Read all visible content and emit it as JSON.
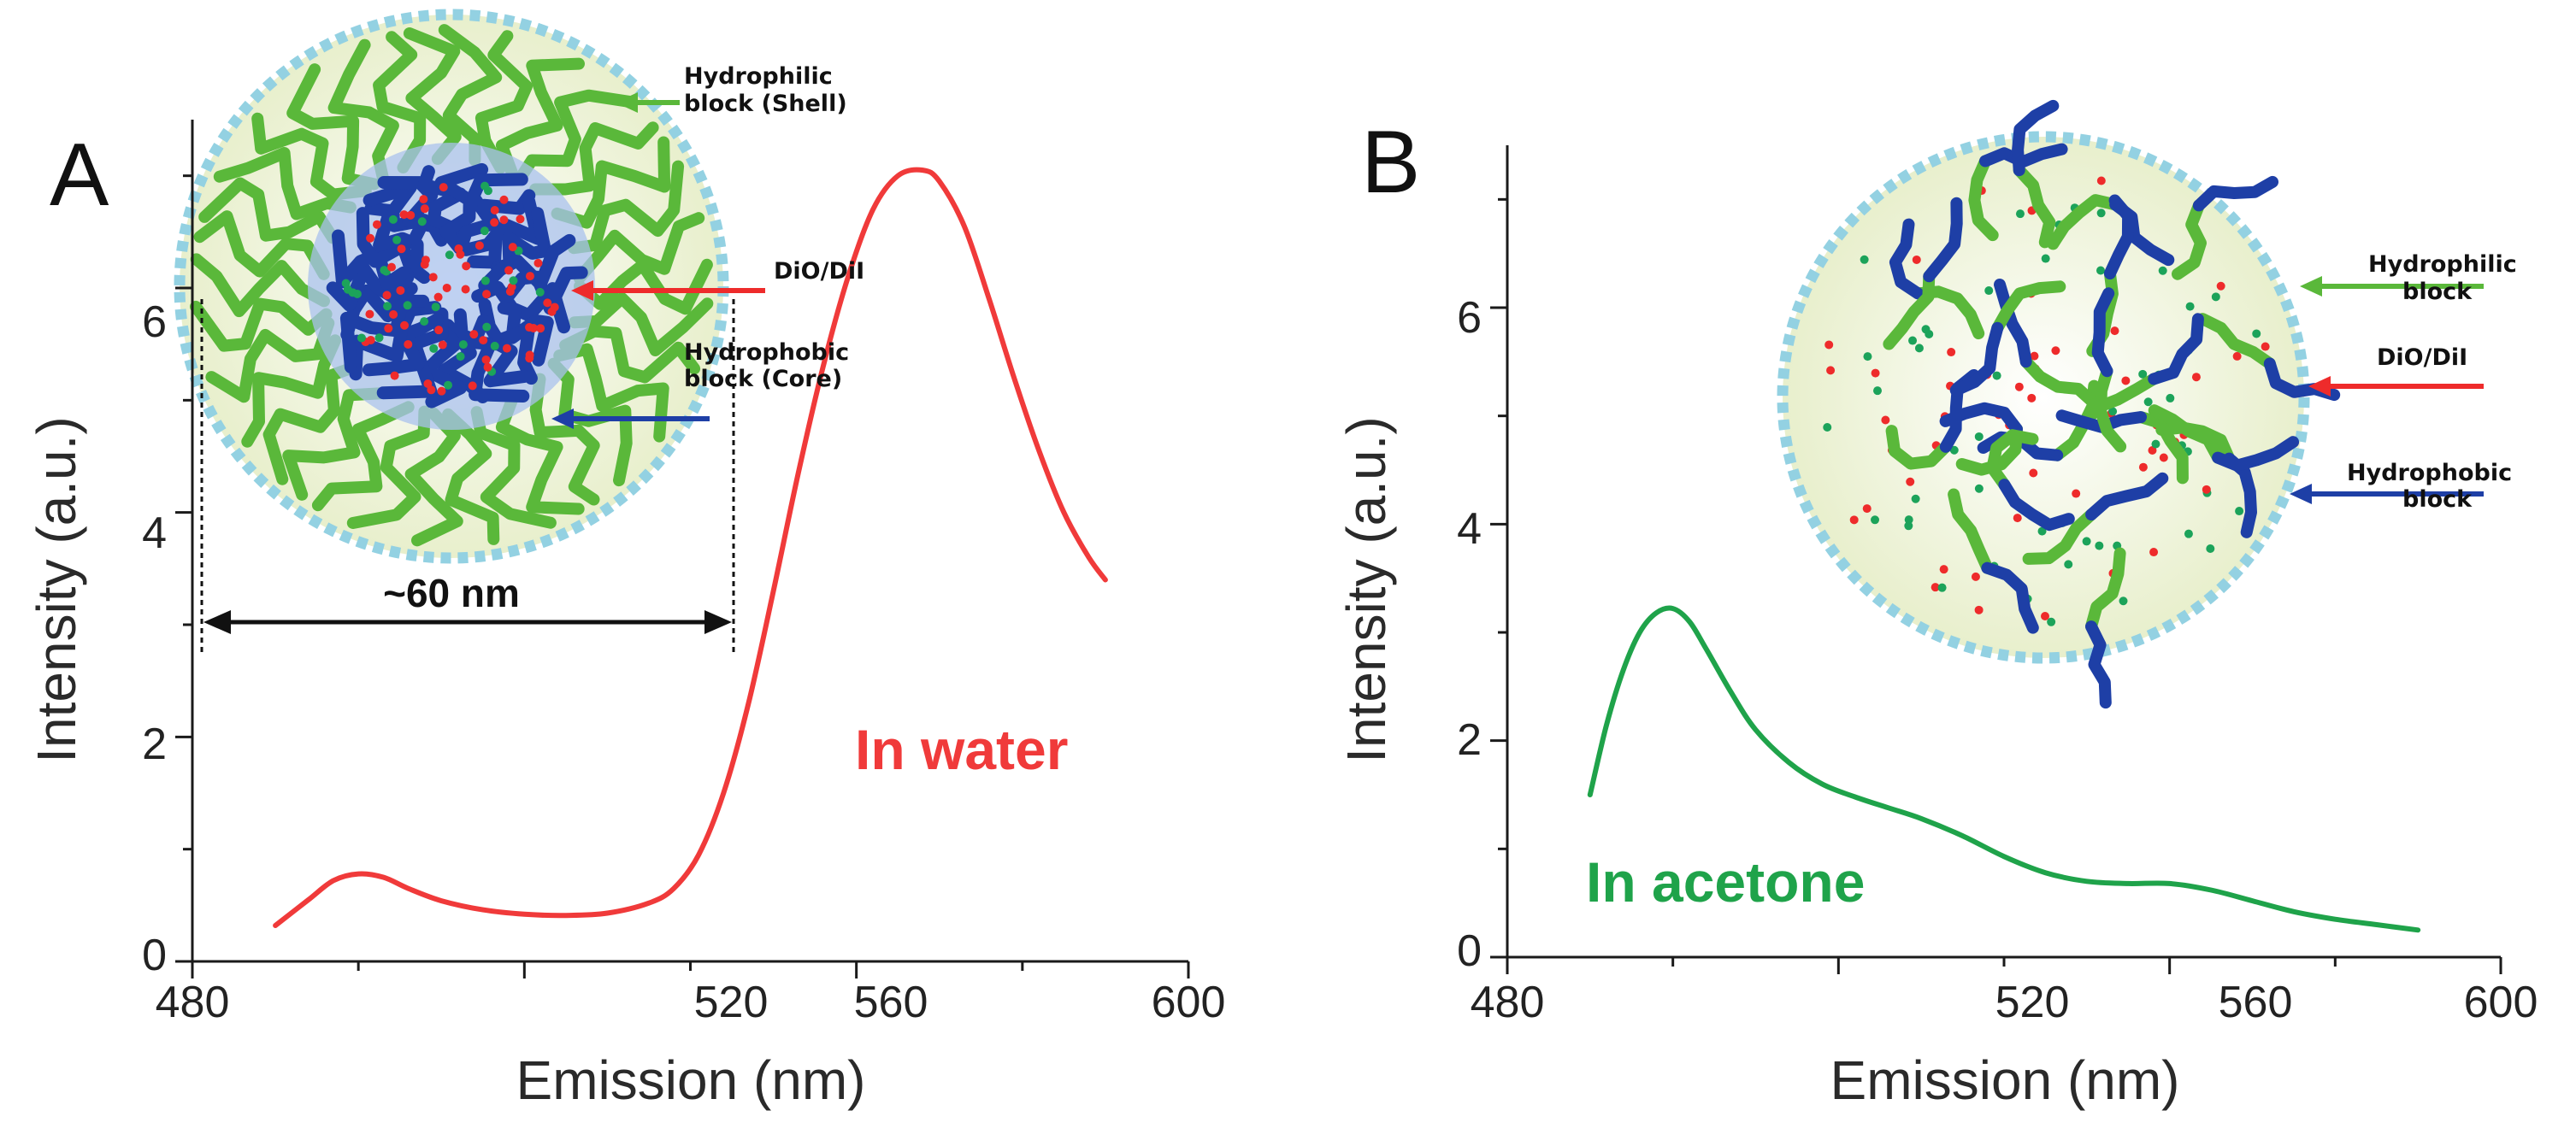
{
  "chart_data": [
    {
      "type": "line",
      "panel": "A",
      "xlabel": "Emission (nm)",
      "ylabel": "Intensity (a.u.)",
      "xlim": [
        480,
        600
      ],
      "ylim": [
        0,
        7.5
      ],
      "xticks": [
        480,
        520,
        560,
        600
      ],
      "yticks": [
        0,
        2,
        4,
        6
      ],
      "series": [
        {
          "name": "In water",
          "color": "#f03a3a",
          "x": [
            490,
            494,
            497,
            500,
            503,
            506,
            510,
            515,
            520,
            525,
            530,
            535,
            538,
            541,
            544,
            547,
            550,
            553,
            556,
            559,
            562,
            565,
            568,
            570,
            573,
            576,
            579,
            582,
            585,
            588,
            590
          ],
          "y": [
            0.32,
            0.55,
            0.72,
            0.78,
            0.75,
            0.65,
            0.54,
            0.46,
            0.42,
            0.41,
            0.43,
            0.52,
            0.65,
            0.95,
            1.5,
            2.3,
            3.3,
            4.35,
            5.3,
            6.1,
            6.7,
            7.0,
            7.05,
            6.95,
            6.55,
            5.9,
            5.2,
            4.55,
            4.0,
            3.6,
            3.4
          ]
        }
      ],
      "annotations": {
        "condition": "In water",
        "size": "~60 nm",
        "shell": "Hydrophilic block (Shell)",
        "dye": "DiO/DiI",
        "core": "Hydrophobic block (Core)"
      }
    },
    {
      "type": "line",
      "panel": "B",
      "xlabel": "Emission (nm)",
      "ylabel": "Intensity (a.u.)",
      "xlim": [
        480,
        600
      ],
      "ylim": [
        0,
        7.5
      ],
      "xticks": [
        480,
        520,
        560,
        600
      ],
      "yticks": [
        0,
        2,
        4,
        6
      ],
      "series": [
        {
          "name": "In acetone",
          "color": "#1fa34a",
          "x": [
            490,
            492,
            494,
            496,
            498,
            500,
            502,
            504,
            507,
            510,
            514,
            518,
            522,
            526,
            530,
            535,
            540,
            545,
            550,
            555,
            560,
            565,
            570,
            575,
            580,
            585,
            590
          ],
          "y": [
            1.5,
            2.15,
            2.65,
            3.0,
            3.18,
            3.22,
            3.1,
            2.85,
            2.45,
            2.1,
            1.8,
            1.6,
            1.48,
            1.38,
            1.28,
            1.12,
            0.93,
            0.78,
            0.7,
            0.68,
            0.68,
            0.62,
            0.52,
            0.42,
            0.35,
            0.3,
            0.25
          ]
        }
      ],
      "annotations": {
        "condition": "In acetone",
        "shell": "Hydrophilic block",
        "dye": "DiO/DiI",
        "core": "Hydrophobic block"
      }
    }
  ],
  "labels": {
    "panel_a": "A",
    "panel_b": "B",
    "shell_a_line1": "Hydrophilic",
    "shell_a_line2": "block (Shell)",
    "dye": "DiO/DiI",
    "core_a_line1": "Hydrophobic",
    "core_a_line2": "block (Core)",
    "shell_b_line1": "Hydrophilic",
    "shell_b_line2": "block",
    "core_b_line1": "Hydrophobic",
    "core_b_line2": "block"
  },
  "colors": {
    "axis": "#1a1a1a",
    "shell_chain": "#5ab83a",
    "core_chain": "#1e3fa6",
    "dye_red": "#ee2b2b",
    "dye_green": "#1ca35a",
    "particle_fill": "#eef3d9",
    "particle_border": "#93d1e2",
    "core_halo": "#a9c2ee"
  }
}
